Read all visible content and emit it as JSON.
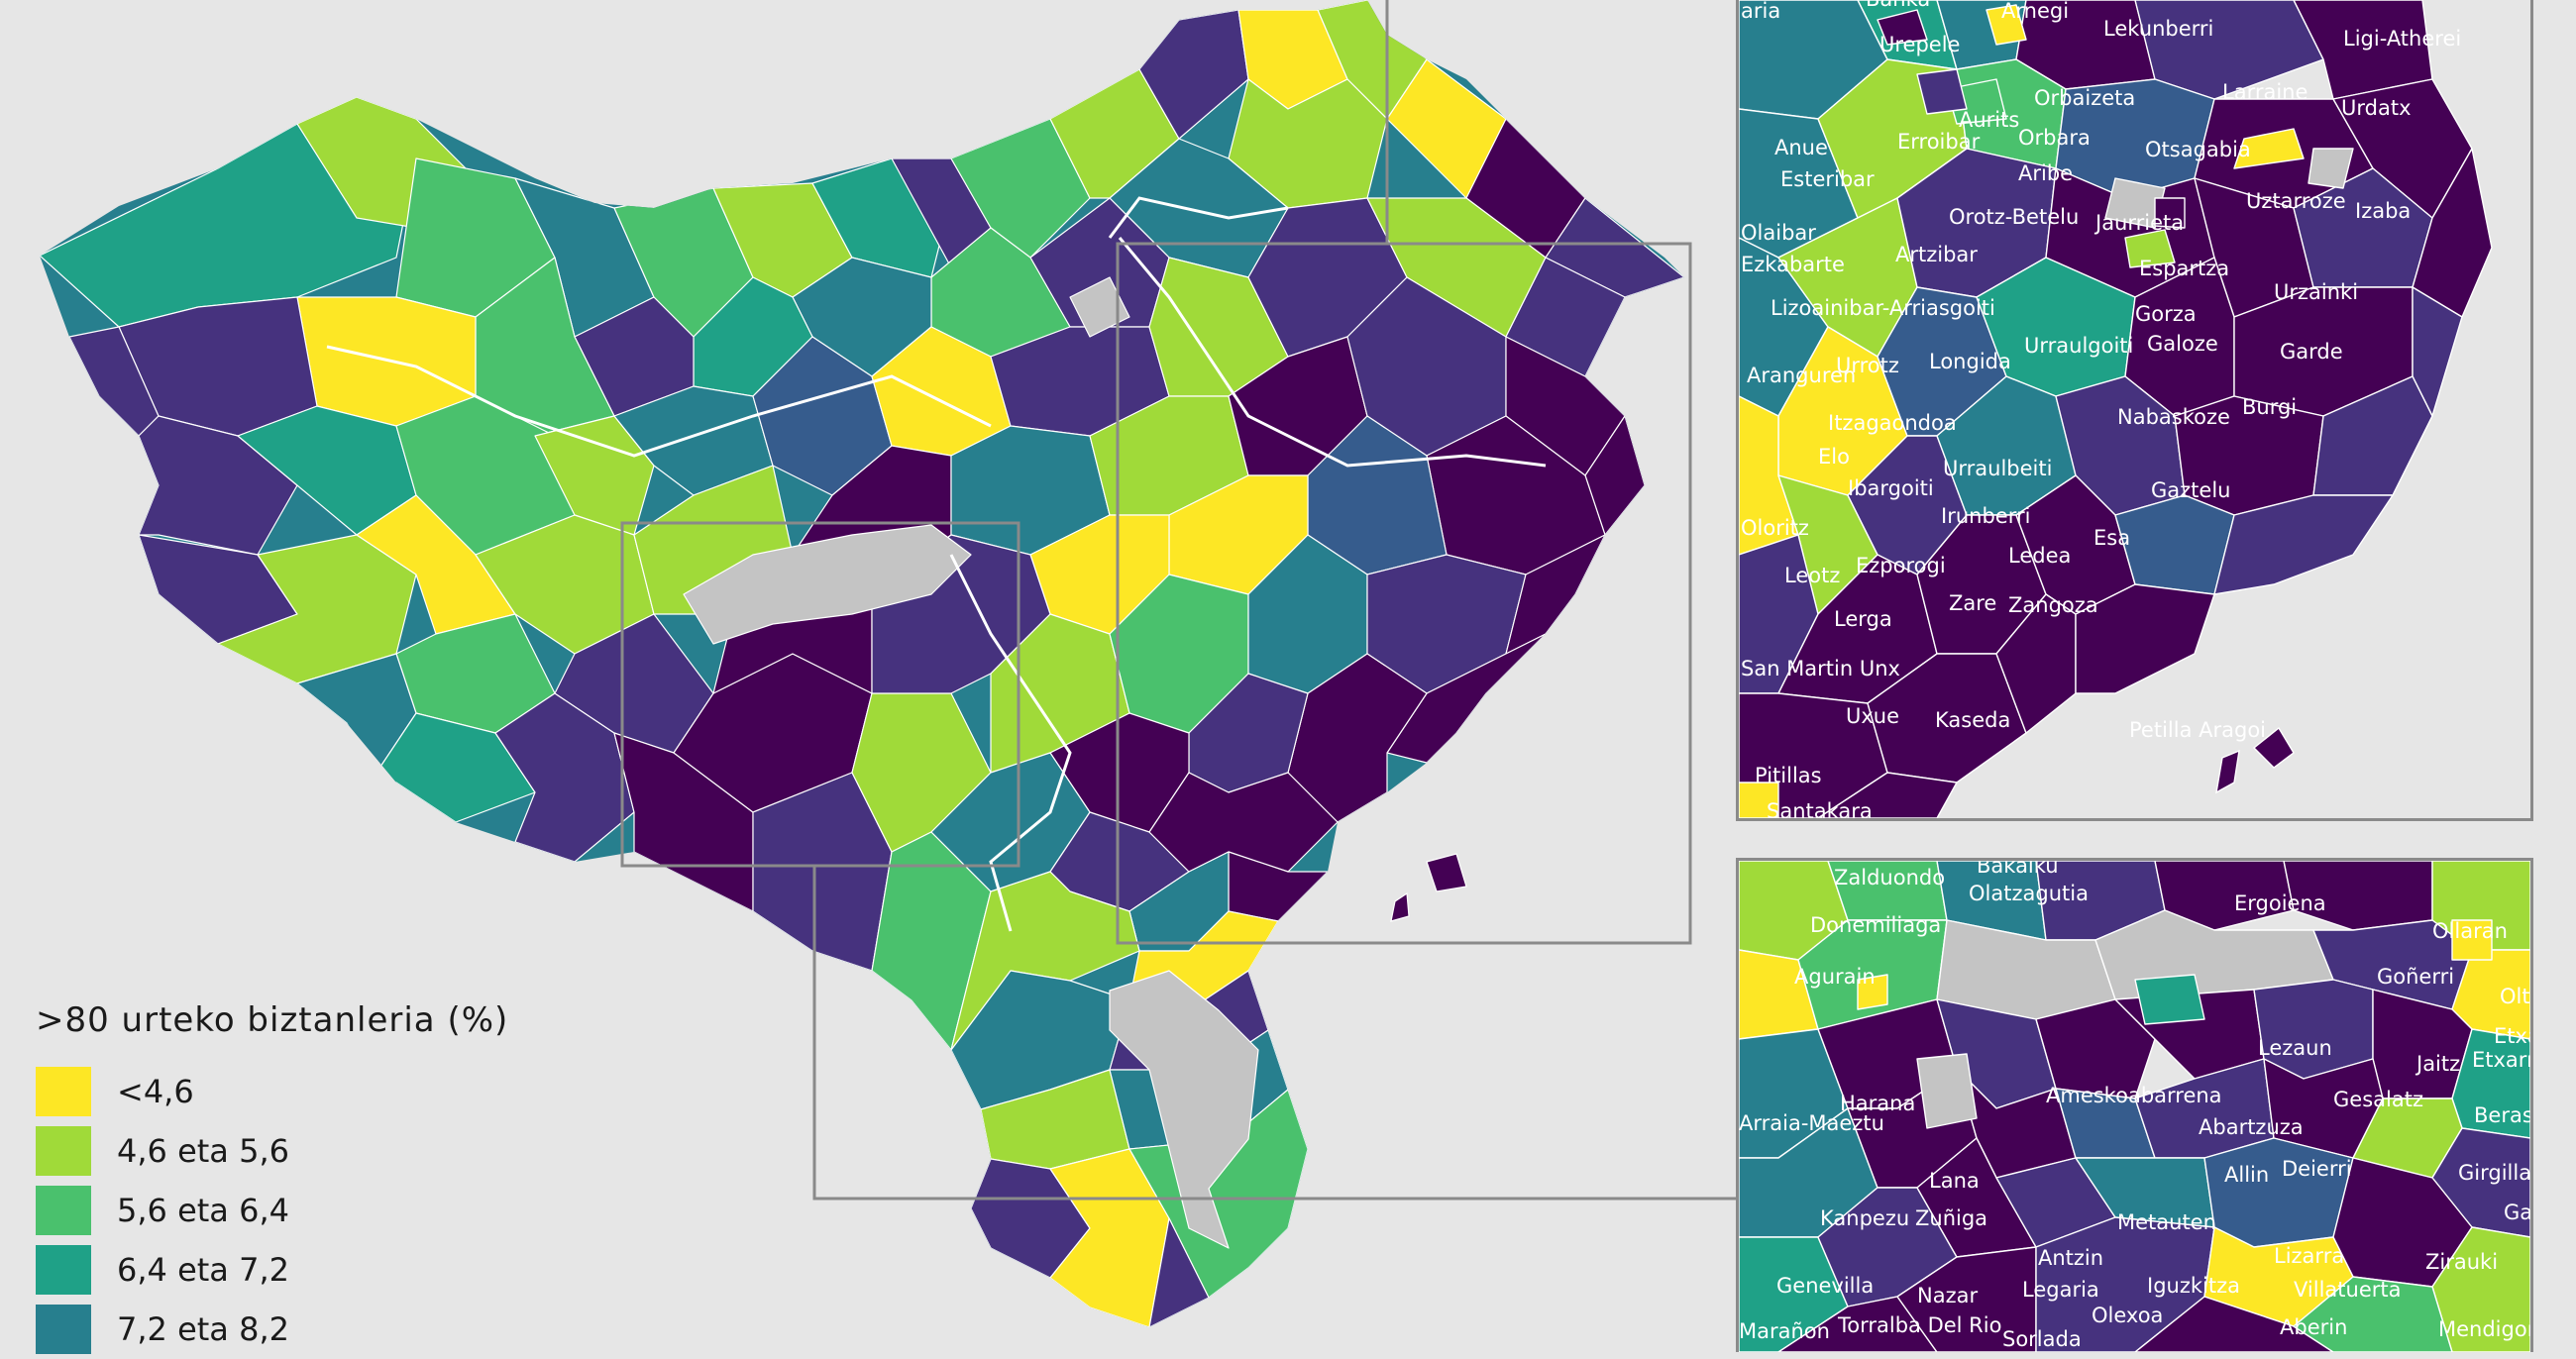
{
  "legend": {
    "title": ">80 urteko biztanleria (%)",
    "items": [
      {
        "label": "<4,6",
        "color": "#fde725"
      },
      {
        "label": "4,6 eta 5,6",
        "color": "#a0da39"
      },
      {
        "label": "5,6 eta 6,4",
        "color": "#4ac16d"
      },
      {
        "label": "6,4 eta 7,2",
        "color": "#1fa187"
      },
      {
        "label": "7,2 eta 8,2",
        "color": "#277f8e"
      }
    ]
  },
  "colors": {
    "no_data": "#c4c4c4",
    "class_6": "#365c8d",
    "class_7": "#46327e",
    "class_8": "#440154",
    "background": "#e6e6e6",
    "border": "#ffffff",
    "inset_frame": "#8a8a8a"
  },
  "inset_north": {
    "labels": [
      "aria",
      "Banka",
      "Arnegi",
      "Lekunberri",
      "Urepele",
      "Ligi-Atherei",
      "Larraine",
      "Orbaizeta",
      "Urdatx",
      "Aurits",
      "Anue",
      "Erroibar",
      "Orbara",
      "Otsagabia",
      "Esteribar",
      "Aribe",
      "Orotz-Betelu",
      "Jaurrieta",
      "Uztarroze",
      "Izaba",
      "Olaibar",
      "Artzibar",
      "Ezkabarte",
      "Espartza",
      "Urzainki",
      "Lizoainibar-Arriasgoiti",
      "Gorza",
      "Urrotz",
      "Longida",
      "Urraulgoiti",
      "Galoze",
      "Garde",
      "Aranguren",
      "Itzagaondoa",
      "Burgi",
      "Nabaskoze",
      "Elo",
      "Ibargoiti",
      "Urraulbeiti",
      "Gaztelu",
      "Oloritz",
      "Irunberri",
      "Esa",
      "Ledea",
      "Leotz",
      "Ezporogi",
      "Zare",
      "Zangoza",
      "Lerga",
      "San Martin Unx",
      "Uxue",
      "Kaseda",
      "Petilla Aragoi",
      "Pitillas",
      "Santakara"
    ]
  },
  "inset_south": {
    "labels": [
      "Bakaiku",
      "Zalduondo",
      "Olatzagutia",
      "Ergoiena",
      "Donemiliaga",
      "Ollaran",
      "Agurain",
      "Goñerri",
      "Olt",
      "Lezaun",
      "Etxa",
      "Jaitz",
      "Etxarri",
      "Harana",
      "Ameskoabarrena",
      "Gesalatz",
      "Berasko",
      "Arraia-Maeztu",
      "Abartzuza",
      "Lana",
      "Deierri",
      "Girgillao",
      "Allin",
      "Gare",
      "Kanpezu",
      "Zuñiga",
      "Metauten",
      "Antzin",
      "Lizarra",
      "Zirauki",
      "Genevilla",
      "Nazar",
      "Legaria",
      "Iguzkitza",
      "Villatuerta",
      "Olexoa",
      "Aberin",
      "Mendigorri",
      "Marañon",
      "Torralba Del Rio",
      "Sorlada"
    ]
  }
}
